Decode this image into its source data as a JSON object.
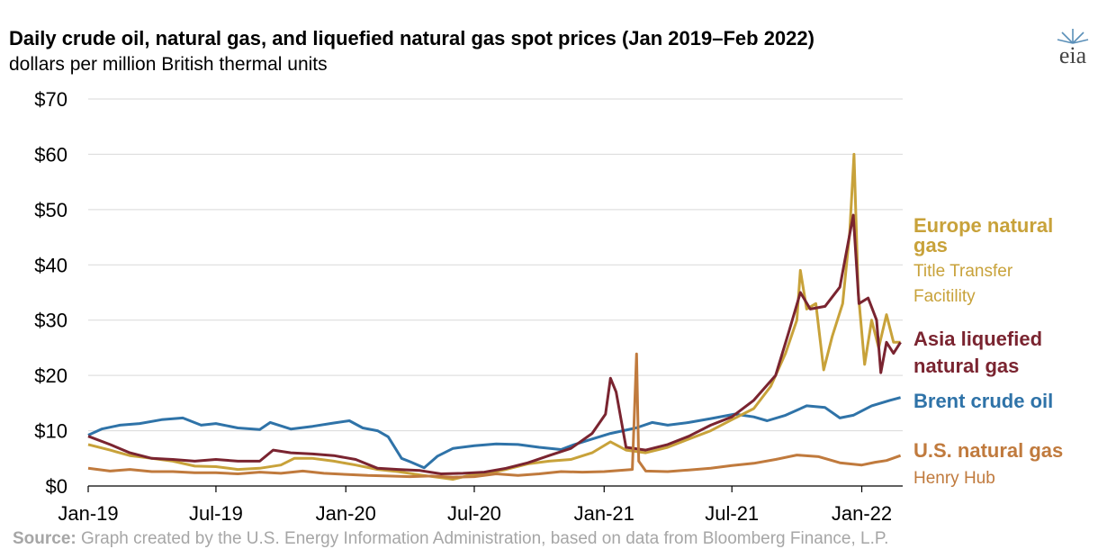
{
  "header": {
    "title": "Daily crude oil, natural gas, and liquefied natural gas spot prices (Jan 2019–Feb 2022)",
    "subtitle": "dollars per million British thermal units",
    "logo_text": "eia"
  },
  "footer": {
    "source_label": "Source:",
    "source_text": " Graph created by the U.S. Energy Information Administration, based on data from Bloomberg Finance, L.P."
  },
  "chart_data": {
    "type": "line",
    "title": "Daily crude oil, natural gas, and liquefied natural gas spot prices (Jan 2019–Feb 2022)",
    "ylabel": "dollars per million British thermal units",
    "xlim": [
      "2019-01-01",
      "2022-02-28"
    ],
    "ylim": [
      0,
      70
    ],
    "y_ticks": [
      0,
      10,
      20,
      30,
      40,
      50,
      60,
      70
    ],
    "y_tick_labels": [
      "$0",
      "$10",
      "$20",
      "$30",
      "$40",
      "$50",
      "$60",
      "$70"
    ],
    "x_ticks": [
      "2019-01-01",
      "2019-07-01",
      "2020-01-01",
      "2020-07-01",
      "2021-01-01",
      "2021-07-01",
      "2022-01-01"
    ],
    "x_tick_labels": [
      "Jan-19",
      "Jul-19",
      "Jan-20",
      "Jul-20",
      "Jan-21",
      "Jul-21",
      "Jan-22"
    ],
    "grid": "horizontal",
    "legend": "right, inline labels",
    "series": [
      {
        "name": "Brent crude oil",
        "color": "#2f73a8",
        "labels": [
          "Brent crude oil"
        ],
        "points": [
          [
            "2019-01-01",
            9.2
          ],
          [
            "2019-01-20",
            10.3
          ],
          [
            "2019-02-15",
            11.0
          ],
          [
            "2019-03-15",
            11.3
          ],
          [
            "2019-04-15",
            12.0
          ],
          [
            "2019-05-15",
            12.3
          ],
          [
            "2019-06-10",
            11.0
          ],
          [
            "2019-07-01",
            11.3
          ],
          [
            "2019-08-01",
            10.5
          ],
          [
            "2019-09-01",
            10.2
          ],
          [
            "2019-09-16",
            11.5
          ],
          [
            "2019-10-15",
            10.3
          ],
          [
            "2019-11-15",
            10.8
          ],
          [
            "2019-12-15",
            11.4
          ],
          [
            "2020-01-06",
            11.8
          ],
          [
            "2020-01-25",
            10.5
          ],
          [
            "2020-02-15",
            10.0
          ],
          [
            "2020-03-01",
            8.9
          ],
          [
            "2020-03-20",
            5.0
          ],
          [
            "2020-04-01",
            4.4
          ],
          [
            "2020-04-21",
            3.3
          ],
          [
            "2020-05-10",
            5.4
          ],
          [
            "2020-06-01",
            6.8
          ],
          [
            "2020-07-01",
            7.3
          ],
          [
            "2020-08-01",
            7.6
          ],
          [
            "2020-09-01",
            7.5
          ],
          [
            "2020-10-01",
            7.0
          ],
          [
            "2020-11-01",
            6.6
          ],
          [
            "2020-11-20",
            7.5
          ],
          [
            "2020-12-15",
            8.5
          ],
          [
            "2021-01-10",
            9.5
          ],
          [
            "2021-02-15",
            10.5
          ],
          [
            "2021-03-10",
            11.5
          ],
          [
            "2021-04-01",
            11.0
          ],
          [
            "2021-05-01",
            11.5
          ],
          [
            "2021-06-01",
            12.2
          ],
          [
            "2021-07-05",
            13.0
          ],
          [
            "2021-08-01",
            12.5
          ],
          [
            "2021-08-20",
            11.8
          ],
          [
            "2021-09-15",
            12.8
          ],
          [
            "2021-10-15",
            14.5
          ],
          [
            "2021-11-10",
            14.2
          ],
          [
            "2021-12-01",
            12.3
          ],
          [
            "2021-12-20",
            12.8
          ],
          [
            "2022-01-15",
            14.5
          ],
          [
            "2022-02-10",
            15.5
          ],
          [
            "2022-02-25",
            16.0
          ]
        ]
      },
      {
        "name": "Europe natural gas",
        "color": "#c8a23a",
        "labels": [
          "Europe natural",
          "gas",
          "Title Transfer",
          "Facitility"
        ],
        "points": [
          [
            "2019-01-01",
            7.5
          ],
          [
            "2019-02-01",
            6.5
          ],
          [
            "2019-03-01",
            5.5
          ],
          [
            "2019-04-01",
            5.0
          ],
          [
            "2019-05-01",
            4.5
          ],
          [
            "2019-06-01",
            3.6
          ],
          [
            "2019-07-01",
            3.5
          ],
          [
            "2019-08-01",
            3.0
          ],
          [
            "2019-09-01",
            3.2
          ],
          [
            "2019-10-01",
            3.8
          ],
          [
            "2019-10-20",
            5.0
          ],
          [
            "2019-11-15",
            5.0
          ],
          [
            "2019-12-15",
            4.5
          ],
          [
            "2020-01-15",
            3.8
          ],
          [
            "2020-02-15",
            3.0
          ],
          [
            "2020-03-15",
            2.6
          ],
          [
            "2020-04-15",
            2.0
          ],
          [
            "2020-05-15",
            1.5
          ],
          [
            "2020-06-01",
            1.2
          ],
          [
            "2020-06-20",
            1.8
          ],
          [
            "2020-07-15",
            2.2
          ],
          [
            "2020-08-15",
            3.0
          ],
          [
            "2020-09-15",
            4.0
          ],
          [
            "2020-10-15",
            4.5
          ],
          [
            "2020-11-15",
            4.8
          ],
          [
            "2020-12-15",
            6.0
          ],
          [
            "2021-01-10",
            8.0
          ],
          [
            "2021-02-01",
            6.5
          ],
          [
            "2021-03-01",
            6.0
          ],
          [
            "2021-04-01",
            7.0
          ],
          [
            "2021-05-01",
            8.5
          ],
          [
            "2021-06-01",
            10.0
          ],
          [
            "2021-07-01",
            12.0
          ],
          [
            "2021-08-01",
            14.0
          ],
          [
            "2021-08-25",
            18.0
          ],
          [
            "2021-09-15",
            24.0
          ],
          [
            "2021-10-01",
            30.0
          ],
          [
            "2021-10-06",
            39.0
          ],
          [
            "2021-10-15",
            32.0
          ],
          [
            "2021-10-28",
            33.0
          ],
          [
            "2021-11-08",
            21.0
          ],
          [
            "2021-11-20",
            27.0
          ],
          [
            "2021-12-05",
            33.0
          ],
          [
            "2021-12-15",
            46.0
          ],
          [
            "2021-12-21",
            60.0
          ],
          [
            "2021-12-27",
            35.0
          ],
          [
            "2022-01-05",
            22.0
          ],
          [
            "2022-01-15",
            30.0
          ],
          [
            "2022-01-25",
            25.0
          ],
          [
            "2022-02-05",
            31.0
          ],
          [
            "2022-02-15",
            26.0
          ],
          [
            "2022-02-25",
            26.0
          ]
        ]
      },
      {
        "name": "Asia liquefied natural gas",
        "color": "#7a2430",
        "labels": [
          "Asia liquefied",
          "natural gas"
        ],
        "points": [
          [
            "2019-01-01",
            9.0
          ],
          [
            "2019-02-01",
            7.5
          ],
          [
            "2019-03-01",
            6.0
          ],
          [
            "2019-04-01",
            5.0
          ],
          [
            "2019-05-01",
            4.8
          ],
          [
            "2019-06-01",
            4.5
          ],
          [
            "2019-07-01",
            4.8
          ],
          [
            "2019-08-01",
            4.5
          ],
          [
            "2019-09-01",
            4.5
          ],
          [
            "2019-09-20",
            6.5
          ],
          [
            "2019-10-15",
            6.0
          ],
          [
            "2019-11-15",
            5.8
          ],
          [
            "2019-12-15",
            5.5
          ],
          [
            "2020-01-15",
            4.8
          ],
          [
            "2020-02-15",
            3.2
          ],
          [
            "2020-03-15",
            3.0
          ],
          [
            "2020-04-15",
            2.8
          ],
          [
            "2020-05-15",
            2.2
          ],
          [
            "2020-06-15",
            2.3
          ],
          [
            "2020-07-15",
            2.5
          ],
          [
            "2020-08-15",
            3.2
          ],
          [
            "2020-09-15",
            4.2
          ],
          [
            "2020-10-15",
            5.5
          ],
          [
            "2020-11-15",
            6.8
          ],
          [
            "2020-12-15",
            9.5
          ],
          [
            "2021-01-03",
            13.0
          ],
          [
            "2021-01-10",
            19.5
          ],
          [
            "2021-01-18",
            17.0
          ],
          [
            "2021-02-01",
            7.0
          ],
          [
            "2021-03-01",
            6.5
          ],
          [
            "2021-04-01",
            7.5
          ],
          [
            "2021-05-01",
            9.0
          ],
          [
            "2021-06-01",
            11.0
          ],
          [
            "2021-07-01",
            12.5
          ],
          [
            "2021-08-01",
            15.5
          ],
          [
            "2021-09-01",
            20.0
          ],
          [
            "2021-09-20",
            28.0
          ],
          [
            "2021-10-06",
            35.0
          ],
          [
            "2021-10-20",
            32.0
          ],
          [
            "2021-11-10",
            32.5
          ],
          [
            "2021-12-01",
            36.0
          ],
          [
            "2021-12-20",
            49.0
          ],
          [
            "2021-12-28",
            33.0
          ],
          [
            "2022-01-10",
            34.0
          ],
          [
            "2022-01-22",
            30.0
          ],
          [
            "2022-01-28",
            20.5
          ],
          [
            "2022-02-05",
            26.0
          ],
          [
            "2022-02-15",
            24.0
          ],
          [
            "2022-02-25",
            26.0
          ]
        ]
      },
      {
        "name": "U.S. natural gas",
        "color": "#c07a3d",
        "labels": [
          "U.S. natural gas",
          "Henry Hub"
        ],
        "points": [
          [
            "2019-01-01",
            3.2
          ],
          [
            "2019-02-01",
            2.7
          ],
          [
            "2019-03-01",
            3.0
          ],
          [
            "2019-04-01",
            2.6
          ],
          [
            "2019-05-01",
            2.6
          ],
          [
            "2019-06-01",
            2.4
          ],
          [
            "2019-07-01",
            2.4
          ],
          [
            "2019-08-01",
            2.2
          ],
          [
            "2019-09-01",
            2.5
          ],
          [
            "2019-10-01",
            2.3
          ],
          [
            "2019-11-01",
            2.7
          ],
          [
            "2019-12-01",
            2.3
          ],
          [
            "2020-01-01",
            2.1
          ],
          [
            "2020-02-01",
            1.9
          ],
          [
            "2020-03-01",
            1.8
          ],
          [
            "2020-04-01",
            1.7
          ],
          [
            "2020-05-01",
            1.8
          ],
          [
            "2020-06-01",
            1.6
          ],
          [
            "2020-07-01",
            1.7
          ],
          [
            "2020-08-01",
            2.2
          ],
          [
            "2020-09-01",
            1.9
          ],
          [
            "2020-10-01",
            2.2
          ],
          [
            "2020-11-01",
            2.6
          ],
          [
            "2020-12-01",
            2.5
          ],
          [
            "2021-01-01",
            2.6
          ],
          [
            "2021-02-10",
            3.0
          ],
          [
            "2021-02-16",
            23.9
          ],
          [
            "2021-02-19",
            4.5
          ],
          [
            "2021-03-01",
            2.7
          ],
          [
            "2021-04-01",
            2.6
          ],
          [
            "2021-05-01",
            2.9
          ],
          [
            "2021-06-01",
            3.2
          ],
          [
            "2021-07-01",
            3.7
          ],
          [
            "2021-08-01",
            4.1
          ],
          [
            "2021-09-01",
            4.8
          ],
          [
            "2021-10-01",
            5.6
          ],
          [
            "2021-11-01",
            5.3
          ],
          [
            "2021-12-01",
            4.2
          ],
          [
            "2022-01-01",
            3.8
          ],
          [
            "2022-01-20",
            4.3
          ],
          [
            "2022-02-05",
            4.6
          ],
          [
            "2022-02-25",
            5.5
          ]
        ]
      }
    ]
  }
}
